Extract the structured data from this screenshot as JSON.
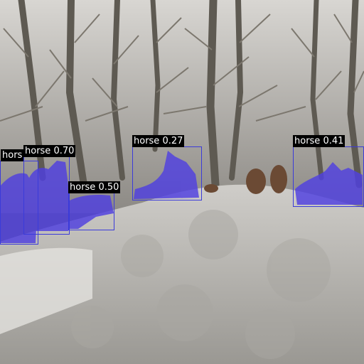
{
  "mask_color": "#4f3fe0",
  "box_color": "#3b3bd9",
  "detections": [
    {
      "label": "hors",
      "full_label": "horse",
      "confidence": null
    },
    {
      "label": "horse 0.70",
      "full_label": "horse",
      "confidence": 0.7
    },
    {
      "label": "horse 0.50",
      "full_label": "horse",
      "confidence": 0.5
    },
    {
      "label": "horse 0.27",
      "full_label": "horse",
      "confidence": 0.27
    },
    {
      "label": "horse 0.41",
      "full_label": "horse",
      "confidence": 0.41
    }
  ]
}
